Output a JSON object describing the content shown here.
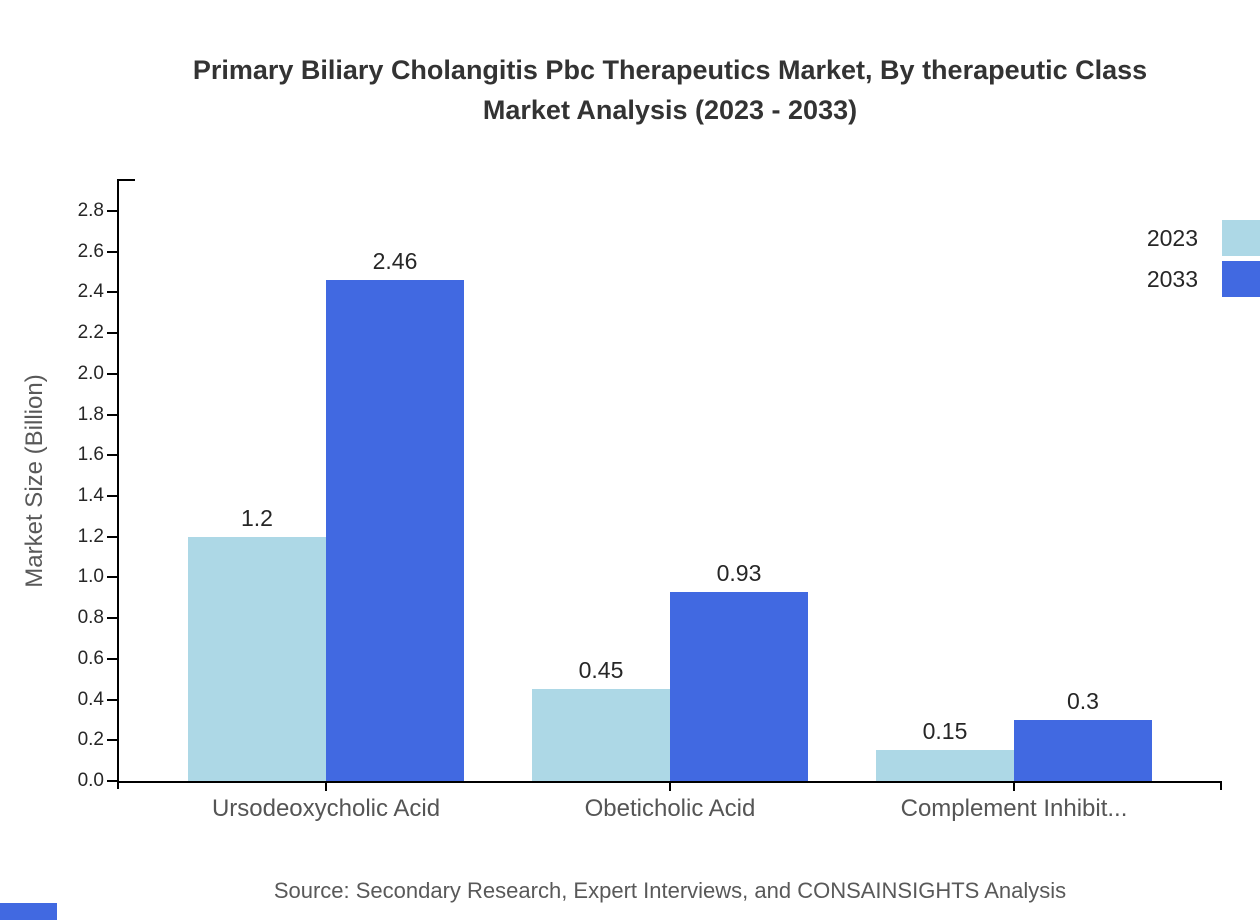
{
  "title": {
    "lines": [
      "Primary Biliary Cholangitis Pbc Therapeutics Market, By therapeutic Class",
      "Market Analysis (2023 - 2033)"
    ]
  },
  "chart_data": {
    "type": "bar",
    "title": "Primary Biliary Cholangitis Pbc Therapeutics Market, By therapeutic Class Market Analysis (2023 - 2033)",
    "categories": [
      "Ursodeoxycholic Acid",
      "Obeticholic Acid",
      "Complement Inhibit..."
    ],
    "series": [
      {
        "name": "2023",
        "color": "#ADD8E6",
        "values": [
          1.2,
          0.45,
          0.15
        ]
      },
      {
        "name": "2033",
        "color": "#4169E1",
        "values": [
          2.46,
          0.93,
          0.3
        ]
      }
    ],
    "xlabel": "",
    "ylabel": "Market Size (Billion)",
    "ylim": [
      0,
      2.9
    ],
    "yticks": [
      0.0,
      0.2,
      0.4,
      0.6,
      0.8,
      1.0,
      1.2,
      1.4,
      1.6,
      1.8,
      2.0,
      2.2,
      2.4,
      2.6,
      2.8
    ],
    "grid": false,
    "legend_position": "top-right",
    "bar_value_labels": true
  },
  "footer": {
    "source_note": "Source: Secondary Research, Expert Interviews, and CONSAINSIGHTS Analysis"
  },
  "colors": {
    "bar_2023": "#ADD8E6",
    "bar_2033": "#4169E1",
    "axis": "#000000",
    "title_text": "#333333",
    "tick_text": "#262626",
    "category_text": "#555555",
    "muted_text": "#595959",
    "corner_mark": "#4169E1"
  }
}
